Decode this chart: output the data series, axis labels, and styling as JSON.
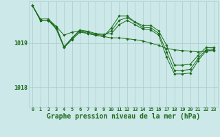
{
  "background_color": "#cce8e8",
  "grid_color": "#aacccc",
  "line_color": "#1a6b1a",
  "marker_color": "#1a6b1a",
  "xlabel": "Graphe pression niveau de la mer (hPa)",
  "xlabel_fontsize": 7.0,
  "ylabel_ticks": [
    1018,
    1019
  ],
  "xlim": [
    -0.5,
    23.5
  ],
  "ylim": [
    1017.55,
    1019.95
  ],
  "xtick_labels": [
    "0",
    "1",
    "2",
    "3",
    "4",
    "5",
    "6",
    "7",
    "8",
    "9",
    "10",
    "11",
    "12",
    "13",
    "14",
    "15",
    "16",
    "17",
    "18",
    "19",
    "20",
    "21",
    "22",
    "23"
  ],
  "series": [
    [
      1019.85,
      1019.55,
      1019.55,
      1019.38,
      1019.18,
      1019.25,
      1019.28,
      1019.22,
      1019.18,
      1019.15,
      1019.12,
      1019.12,
      1019.1,
      1019.08,
      1019.05,
      1019.0,
      1018.95,
      1018.88,
      1018.85,
      1018.83,
      1018.82,
      1018.8,
      1018.82,
      1018.83
    ],
    [
      1019.85,
      1019.52,
      1019.52,
      1019.32,
      1018.9,
      1019.08,
      1019.25,
      1019.22,
      1019.18,
      1019.15,
      1019.35,
      1019.62,
      1019.62,
      1019.48,
      1019.4,
      1019.4,
      1019.28,
      1018.95,
      1018.5,
      1018.5,
      1018.52,
      1018.72,
      1018.9,
      1018.9
    ],
    [
      1019.85,
      1019.52,
      1019.52,
      1019.35,
      1018.9,
      1019.1,
      1019.28,
      1019.25,
      1019.2,
      1019.18,
      1019.28,
      1019.52,
      1019.58,
      1019.48,
      1019.35,
      1019.35,
      1019.22,
      1018.8,
      1018.38,
      1018.38,
      1018.4,
      1018.65,
      1018.85,
      1018.87
    ],
    [
      1019.85,
      1019.52,
      1019.52,
      1019.38,
      1018.92,
      1019.12,
      1019.3,
      1019.27,
      1019.22,
      1019.2,
      1019.22,
      1019.42,
      1019.52,
      1019.42,
      1019.32,
      1019.3,
      1019.18,
      1018.68,
      1018.3,
      1018.3,
      1018.32,
      1018.6,
      1018.82,
      1018.85
    ]
  ]
}
